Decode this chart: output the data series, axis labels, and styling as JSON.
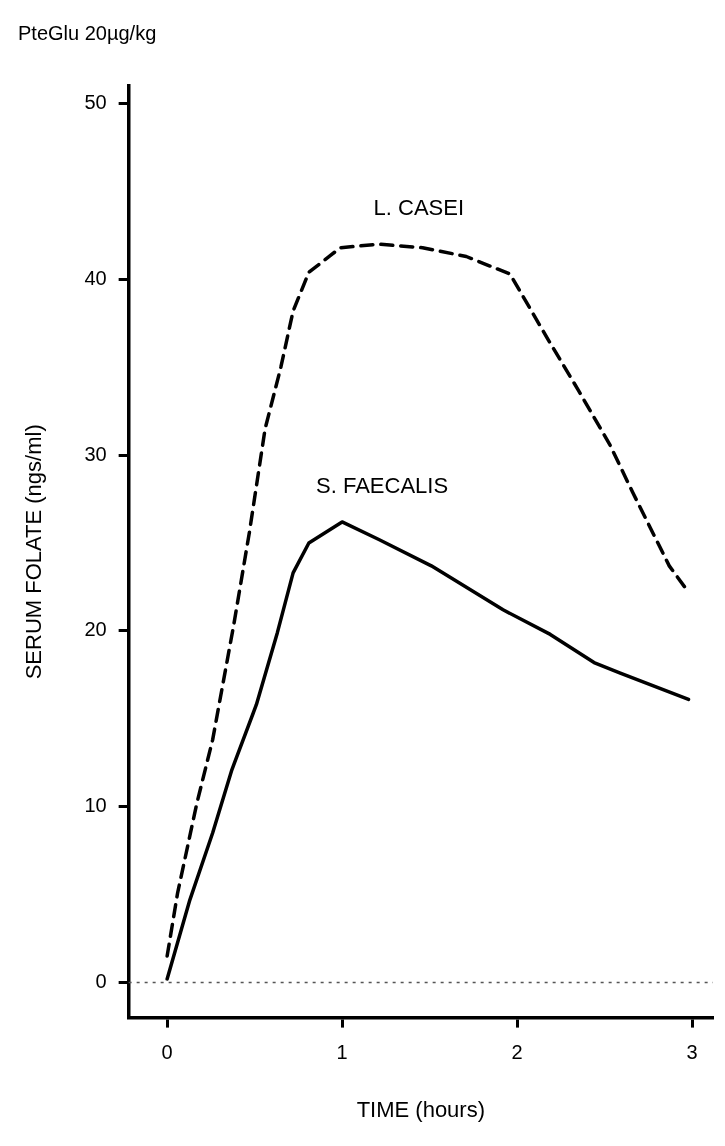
{
  "chart_data": {
    "type": "line",
    "title": "PteGlu 20µg/kg",
    "xlabel": "TIME (hours)",
    "ylabel": "SERUM FOLATE (ngs/ml)",
    "xlim": [
      -0.22,
      3.12
    ],
    "ylim": [
      -2,
      51
    ],
    "xticks": [
      0,
      1,
      2,
      3
    ],
    "yticks": [
      0,
      10,
      20,
      30,
      40,
      50
    ],
    "grid": false,
    "legend": false,
    "marker": "none",
    "ref_lines": [
      {
        "axis": "y",
        "value": 0,
        "line_style": "dotted",
        "color": "#555555"
      }
    ],
    "series": [
      {
        "name": "L. CASEI",
        "color": "#000000",
        "line_style": "dashed",
        "x": [
          0,
          0.06,
          0.17,
          0.26,
          0.38,
          0.47,
          0.56,
          0.65,
          0.72,
          0.81,
          0.99,
          1.21,
          1.46,
          1.71,
          1.96,
          2.17,
          2.35,
          2.53,
          2.66,
          2.75,
          2.87,
          2.98
        ],
        "values": [
          1.5,
          5.1,
          10.2,
          13.8,
          20.3,
          25.6,
          31.5,
          35.0,
          38.2,
          40.4,
          41.8,
          42.0,
          41.8,
          41.3,
          40.3,
          36.7,
          33.7,
          30.6,
          27.9,
          26.1,
          23.7,
          22.2
        ]
      },
      {
        "name": "S. FAECALIS",
        "color": "#000000",
        "line_style": "solid",
        "x": [
          0,
          0.13,
          0.26,
          0.37,
          0.51,
          0.63,
          0.72,
          0.81,
          1.0,
          1.21,
          1.51,
          1.92,
          2.19,
          2.44,
          2.59,
          2.98
        ],
        "values": [
          0.2,
          4.7,
          8.5,
          12.1,
          15.8,
          19.9,
          23.3,
          25.0,
          26.2,
          25.2,
          23.7,
          21.2,
          19.8,
          18.2,
          17.6,
          16.1
        ]
      }
    ]
  }
}
